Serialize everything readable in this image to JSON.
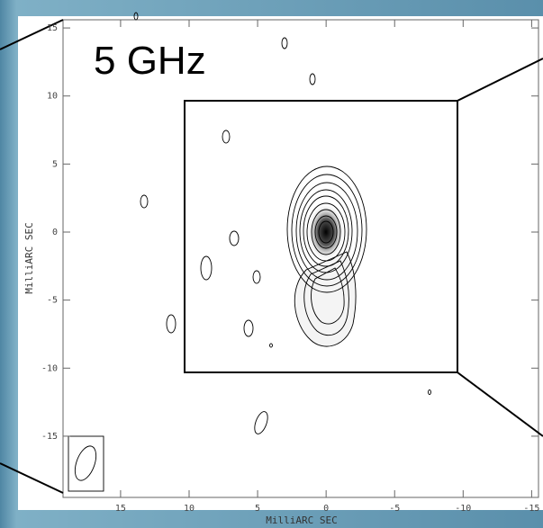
{
  "chart_data": {
    "type": "contour",
    "annotation": "5 GHz",
    "xlabel": "MilliARC SEC",
    "ylabel": "MilliARC SEC",
    "xlim": [
      19.2,
      -15.5
    ],
    "ylim": [
      -19.5,
      15.6
    ],
    "xticks": [
      15,
      10,
      5,
      0,
      -5,
      -10,
      -15
    ],
    "yticks": [
      -15,
      -10,
      -5,
      0,
      5,
      10,
      15
    ]
  }
}
